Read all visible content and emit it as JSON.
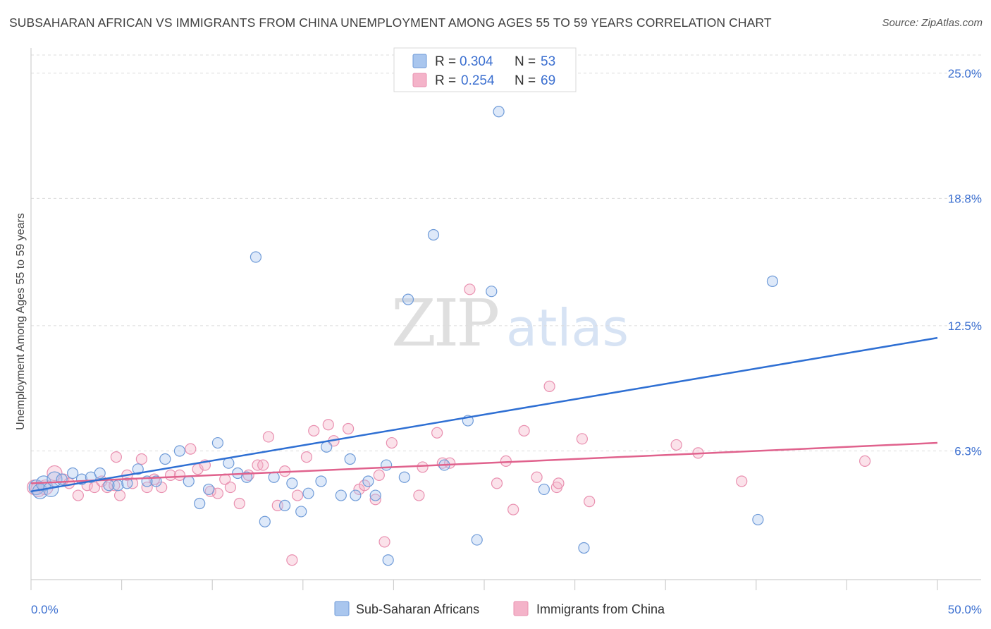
{
  "title": "SUBSAHARAN AFRICAN VS IMMIGRANTS FROM CHINA UNEMPLOYMENT AMONG AGES 55 TO 59 YEARS CORRELATION CHART",
  "source": "Source: ZipAtlas.com",
  "watermark": {
    "zip": "ZIP",
    "atlas": "atlas"
  },
  "legend": {
    "r_label": "R =",
    "n_label": "N =",
    "rows": [
      {
        "r": "0.304",
        "n": "53"
      },
      {
        "r": "0.254",
        "n": "69"
      }
    ]
  },
  "colors": {
    "blue_fill": "#a9c6ee",
    "blue_stroke": "#6f9bd8",
    "blue_line": "#2e6fd3",
    "pink_fill": "#f4b3c9",
    "pink_stroke": "#e990b0",
    "pink_line": "#e0628d",
    "accent_text": "#3b6fd0",
    "grid": "#dcdcdc"
  },
  "chart_data": {
    "type": "scatter",
    "title": "SUBSAHARAN AFRICAN VS IMMIGRANTS FROM CHINA UNEMPLOYMENT AMONG AGES 55 TO 59 YEARS CORRELATION CHART",
    "xlabel": "",
    "ylabel": "Unemployment Among Ages 55 to 59 years",
    "xlim": [
      0,
      50
    ],
    "ylim": [
      0,
      25.9
    ],
    "x_tick_labels": [
      {
        "value": 0,
        "label": "0.0%"
      },
      {
        "value": 50,
        "label": "50.0%"
      }
    ],
    "x_minor_ticks": [
      0,
      5,
      10,
      15,
      20,
      25,
      30,
      35,
      40,
      45,
      50
    ],
    "y_tick_labels": [
      {
        "value": 6.3,
        "label": "6.3%"
      },
      {
        "value": 12.5,
        "label": "12.5%"
      },
      {
        "value": 18.8,
        "label": "18.8%"
      },
      {
        "value": 25.0,
        "label": "25.0%"
      }
    ],
    "grid": true,
    "legend_position": "top-center",
    "series": [
      {
        "name": "Sub-Saharan Africans",
        "color": "#a9c6ee",
        "r": 0.304,
        "n": 53,
        "trend": {
          "x": [
            0,
            50
          ],
          "y": [
            4.3,
            11.9
          ]
        },
        "points": [
          {
            "x": 0.3,
            "y": 4.5
          },
          {
            "x": 0.5,
            "y": 4.3
          },
          {
            "x": 0.7,
            "y": 4.7
          },
          {
            "x": 1.1,
            "y": 4.4
          },
          {
            "x": 1.3,
            "y": 4.9
          },
          {
            "x": 1.7,
            "y": 4.9
          },
          {
            "x": 2.3,
            "y": 5.2
          },
          {
            "x": 2.8,
            "y": 4.9
          },
          {
            "x": 3.3,
            "y": 5.0
          },
          {
            "x": 3.8,
            "y": 5.2
          },
          {
            "x": 4.3,
            "y": 4.6
          },
          {
            "x": 4.8,
            "y": 4.6
          },
          {
            "x": 5.3,
            "y": 4.7
          },
          {
            "x": 5.9,
            "y": 5.4
          },
          {
            "x": 6.4,
            "y": 4.8
          },
          {
            "x": 6.9,
            "y": 4.8
          },
          {
            "x": 7.4,
            "y": 5.9
          },
          {
            "x": 8.2,
            "y": 6.3
          },
          {
            "x": 8.7,
            "y": 4.8
          },
          {
            "x": 9.3,
            "y": 3.7
          },
          {
            "x": 9.8,
            "y": 4.4
          },
          {
            "x": 10.3,
            "y": 6.7
          },
          {
            "x": 10.9,
            "y": 5.7
          },
          {
            "x": 11.4,
            "y": 5.2
          },
          {
            "x": 11.9,
            "y": 5.0
          },
          {
            "x": 12.4,
            "y": 15.9
          },
          {
            "x": 12.9,
            "y": 2.8
          },
          {
            "x": 13.4,
            "y": 5.0
          },
          {
            "x": 14.0,
            "y": 3.6
          },
          {
            "x": 14.4,
            "y": 4.7
          },
          {
            "x": 14.9,
            "y": 3.3
          },
          {
            "x": 15.3,
            "y": 4.2
          },
          {
            "x": 16.0,
            "y": 4.8
          },
          {
            "x": 16.3,
            "y": 6.5
          },
          {
            "x": 17.1,
            "y": 4.1
          },
          {
            "x": 17.6,
            "y": 5.9
          },
          {
            "x": 17.9,
            "y": 4.1
          },
          {
            "x": 18.6,
            "y": 4.8
          },
          {
            "x": 19.0,
            "y": 4.1
          },
          {
            "x": 19.6,
            "y": 5.6
          },
          {
            "x": 19.7,
            "y": 0.9
          },
          {
            "x": 20.6,
            "y": 5.0
          },
          {
            "x": 20.8,
            "y": 13.8
          },
          {
            "x": 22.2,
            "y": 17.0
          },
          {
            "x": 22.8,
            "y": 5.6
          },
          {
            "x": 24.1,
            "y": 7.8
          },
          {
            "x": 24.6,
            "y": 1.9
          },
          {
            "x": 25.4,
            "y": 14.2
          },
          {
            "x": 25.8,
            "y": 23.1
          },
          {
            "x": 28.3,
            "y": 4.4
          },
          {
            "x": 30.5,
            "y": 1.5
          },
          {
            "x": 40.1,
            "y": 2.9
          },
          {
            "x": 40.9,
            "y": 14.7
          }
        ]
      },
      {
        "name": "Immigrants from China",
        "color": "#f4b3c9",
        "r": 0.254,
        "n": 69,
        "trend": {
          "x": [
            0,
            50
          ],
          "y": [
            4.7,
            6.7
          ]
        },
        "points": [
          {
            "x": 0.2,
            "y": 4.5
          },
          {
            "x": 0.4,
            "y": 4.4
          },
          {
            "x": 0.8,
            "y": 4.5
          },
          {
            "x": 1.3,
            "y": 5.2
          },
          {
            "x": 1.8,
            "y": 4.9
          },
          {
            "x": 2.1,
            "y": 4.7
          },
          {
            "x": 2.6,
            "y": 4.1
          },
          {
            "x": 3.1,
            "y": 4.6
          },
          {
            "x": 3.5,
            "y": 4.5
          },
          {
            "x": 3.9,
            "y": 4.8
          },
          {
            "x": 4.2,
            "y": 4.5
          },
          {
            "x": 4.6,
            "y": 4.6
          },
          {
            "x": 4.7,
            "y": 6.0
          },
          {
            "x": 4.9,
            "y": 4.1
          },
          {
            "x": 5.3,
            "y": 5.1
          },
          {
            "x": 5.6,
            "y": 4.7
          },
          {
            "x": 6.1,
            "y": 5.9
          },
          {
            "x": 6.4,
            "y": 4.5
          },
          {
            "x": 6.8,
            "y": 4.9
          },
          {
            "x": 7.2,
            "y": 4.5
          },
          {
            "x": 7.7,
            "y": 5.1
          },
          {
            "x": 8.2,
            "y": 5.1
          },
          {
            "x": 8.8,
            "y": 6.4
          },
          {
            "x": 9.2,
            "y": 5.4
          },
          {
            "x": 9.6,
            "y": 5.6
          },
          {
            "x": 9.9,
            "y": 4.3
          },
          {
            "x": 10.3,
            "y": 4.2
          },
          {
            "x": 10.7,
            "y": 4.9
          },
          {
            "x": 11.0,
            "y": 4.5
          },
          {
            "x": 11.5,
            "y": 3.7
          },
          {
            "x": 12.0,
            "y": 5.1
          },
          {
            "x": 12.5,
            "y": 5.6
          },
          {
            "x": 12.8,
            "y": 5.6
          },
          {
            "x": 13.1,
            "y": 7.0
          },
          {
            "x": 13.6,
            "y": 3.6
          },
          {
            "x": 14.0,
            "y": 5.3
          },
          {
            "x": 14.4,
            "y": 0.9
          },
          {
            "x": 14.7,
            "y": 4.1
          },
          {
            "x": 15.2,
            "y": 6.0
          },
          {
            "x": 15.6,
            "y": 7.3
          },
          {
            "x": 16.4,
            "y": 7.6
          },
          {
            "x": 16.7,
            "y": 6.8
          },
          {
            "x": 17.5,
            "y": 7.4
          },
          {
            "x": 18.1,
            "y": 4.4
          },
          {
            "x": 18.4,
            "y": 4.6
          },
          {
            "x": 19.0,
            "y": 3.9
          },
          {
            "x": 19.2,
            "y": 5.1
          },
          {
            "x": 19.5,
            "y": 1.8
          },
          {
            "x": 19.9,
            "y": 6.7
          },
          {
            "x": 21.4,
            "y": 4.1
          },
          {
            "x": 21.6,
            "y": 5.5
          },
          {
            "x": 22.4,
            "y": 7.2
          },
          {
            "x": 22.7,
            "y": 5.7
          },
          {
            "x": 23.1,
            "y": 5.7
          },
          {
            "x": 24.2,
            "y": 14.3
          },
          {
            "x": 25.7,
            "y": 4.7
          },
          {
            "x": 26.2,
            "y": 5.8
          },
          {
            "x": 26.6,
            "y": 3.4
          },
          {
            "x": 27.2,
            "y": 7.3
          },
          {
            "x": 27.9,
            "y": 5.0
          },
          {
            "x": 28.6,
            "y": 9.5
          },
          {
            "x": 29.0,
            "y": 4.5
          },
          {
            "x": 29.1,
            "y": 4.7
          },
          {
            "x": 30.4,
            "y": 6.9
          },
          {
            "x": 30.8,
            "y": 3.8
          },
          {
            "x": 35.6,
            "y": 6.6
          },
          {
            "x": 36.8,
            "y": 6.2
          },
          {
            "x": 39.2,
            "y": 4.8
          },
          {
            "x": 46.0,
            "y": 5.8
          }
        ]
      }
    ]
  }
}
